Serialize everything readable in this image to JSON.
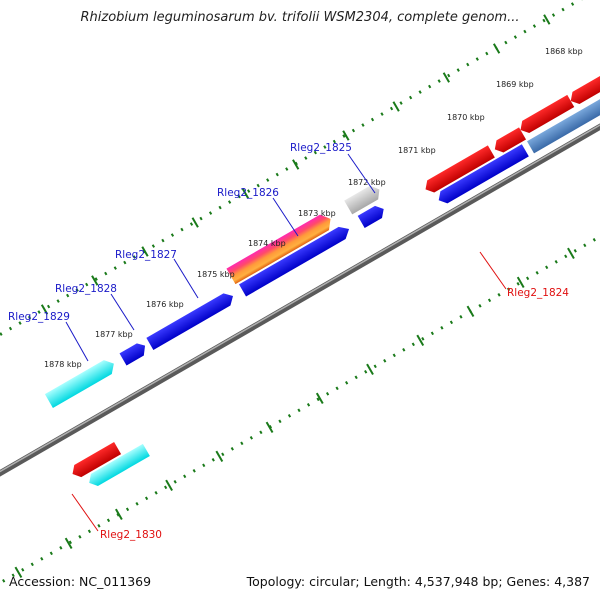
{
  "title": "Rhizobium leguminosarum bv. trifolii WSM2304, complete genom...",
  "footer": {
    "accession": "Accession: NC_011369",
    "summary": "Topology: circular; Length: 4,537,948 bp; Genes: 4,387"
  },
  "ruler": {
    "labels": [
      "1868 kbp",
      "1869 kbp",
      "1870 kbp",
      "1871 kbp",
      "1872 kbp",
      "1873 kbp",
      "1874 kbp",
      "1875 kbp",
      "1876 kbp",
      "1877 kbp",
      "1878 kbp"
    ]
  },
  "genes": [
    {
      "label": "Rleg2_1825",
      "color": "#1a1ac8"
    },
    {
      "label": "Rleg2_1826",
      "color": "#1a1ac8"
    },
    {
      "label": "Rleg2_1827",
      "color": "#1a1ac8"
    },
    {
      "label": "Rleg2_1828",
      "color": "#1a1ac8"
    },
    {
      "label": "Rleg2_1829",
      "color": "#1a1ac8"
    },
    {
      "label": "Rleg2_1824",
      "color": "#e01010"
    },
    {
      "label": "Rleg2_1830",
      "color": "#e01010"
    }
  ],
  "colors": {
    "forward_strand": "#0000ee",
    "reverse_strand": "#ee0000",
    "rna": "#00e8ee",
    "pseudo": "#c8c8c8",
    "steelblue": "#4a7ab8",
    "tick": "#1a7a1a",
    "backbone": "#808080"
  }
}
